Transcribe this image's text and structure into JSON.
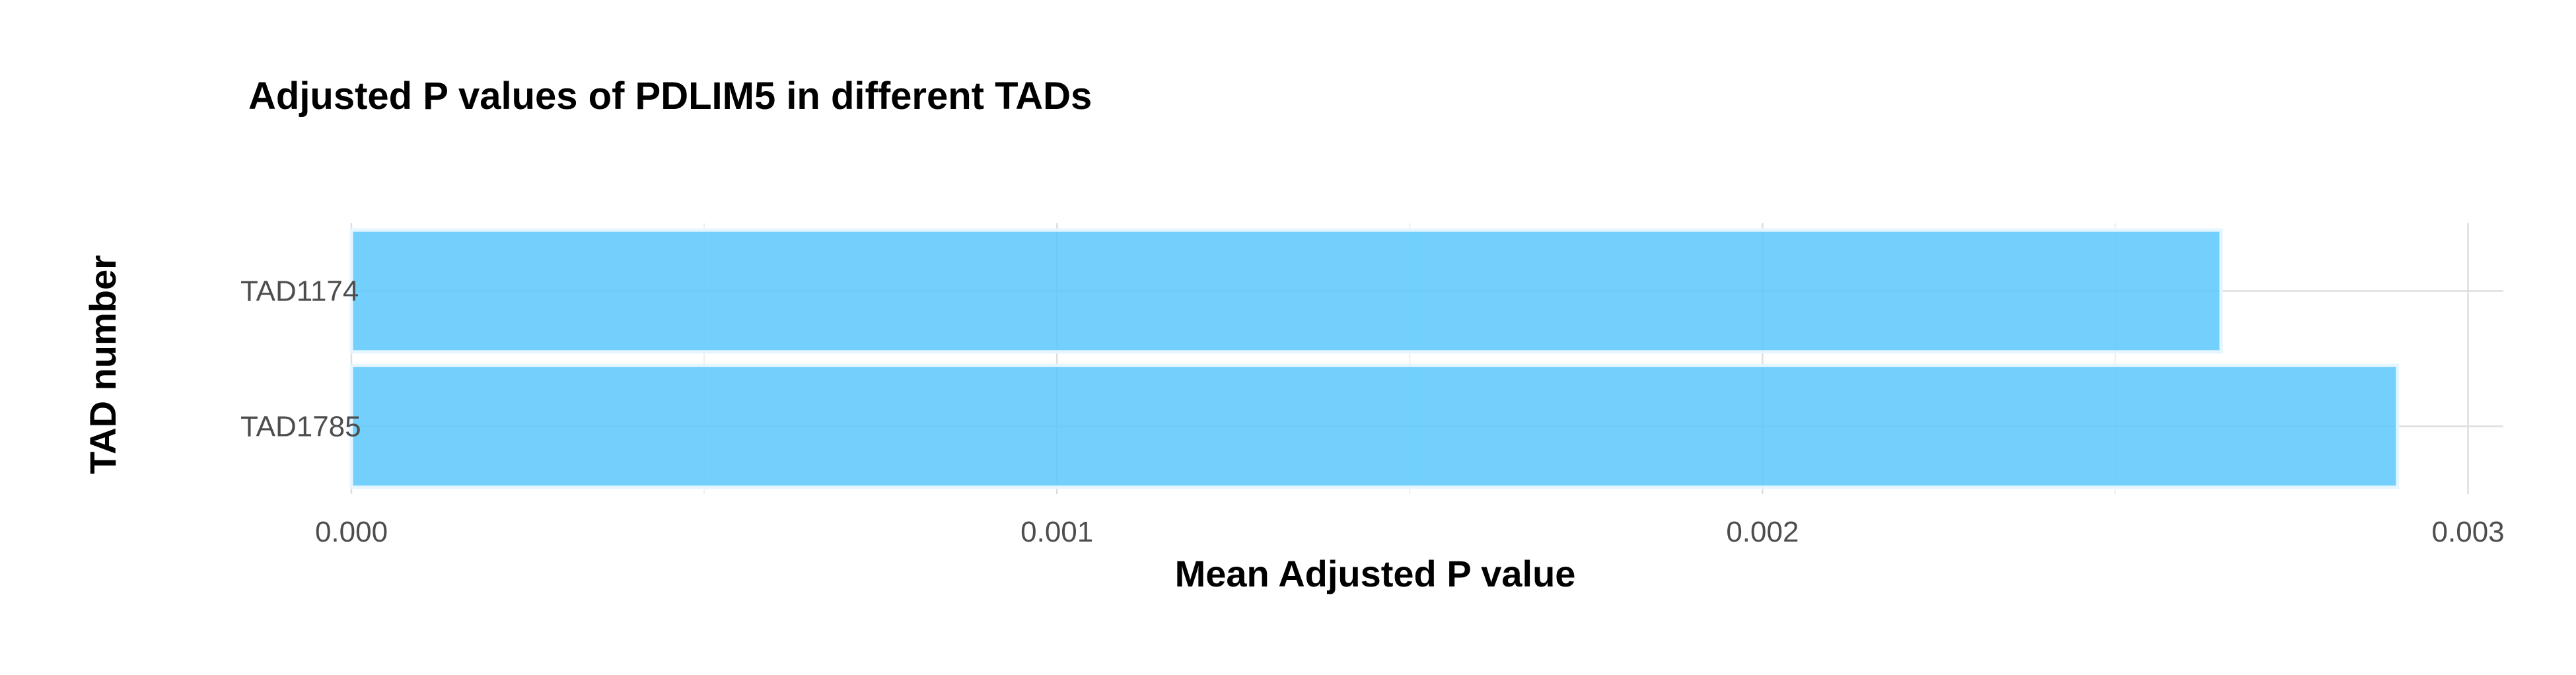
{
  "chart_data": {
    "type": "bar",
    "orientation": "horizontal",
    "title": "Adjusted P values of PDLIM5 in different TADs",
    "xlabel": "Mean Adjusted P value",
    "ylabel": "TAD number",
    "categories": [
      "TAD1174",
      "TAD1785"
    ],
    "values": [
      0.00265,
      0.0029
    ],
    "xlim": [
      0,
      0.00305
    ],
    "x_ticks": [
      0,
      0.001,
      0.002,
      0.003
    ],
    "x_tick_labels": [
      "0.000",
      "0.001",
      "0.002",
      "0.003"
    ],
    "grid": true,
    "legend": "none",
    "bar_color": "#5bc8fb",
    "bar_edge_color": "#e6f6ff",
    "grid_major_color": "#dedede",
    "grid_minor_color": "#eeeeee",
    "text_color": "#000000",
    "tick_label_color": "#4d4d4d"
  }
}
